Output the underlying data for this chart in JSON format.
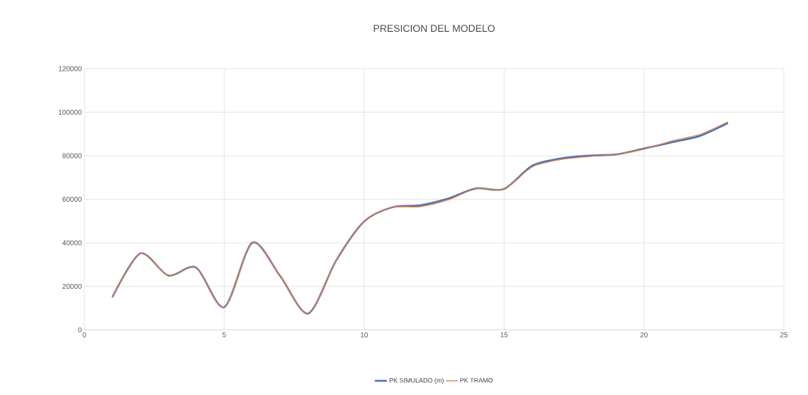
{
  "chart_data": {
    "type": "line",
    "title": "PRESICION DEL MODELO",
    "x": [
      1,
      2,
      3,
      4,
      5,
      6,
      7,
      8,
      9,
      10,
      11,
      12,
      13,
      14,
      15,
      16,
      17,
      18,
      19,
      20,
      21,
      22,
      23
    ],
    "series": [
      {
        "name": "PK SIMULADO (m)",
        "color": "#4472c4",
        "values": [
          15000,
          35100,
          25000,
          28600,
          10400,
          40000,
          24700,
          7500,
          31900,
          49800,
          56300,
          57200,
          60300,
          65000,
          64700,
          75400,
          78700,
          80000,
          80600,
          83300,
          86200,
          89100,
          95000
        ]
      },
      {
        "name": "PK TRAMO",
        "color": "#ed7d31",
        "values": [
          15000,
          35100,
          25000,
          28600,
          10400,
          40000,
          24700,
          7500,
          31900,
          49800,
          56300,
          56600,
          59700,
          65000,
          64700,
          74800,
          78200,
          79600,
          80600,
          83000,
          86800,
          89800,
          95600
        ]
      }
    ],
    "xlim": [
      0,
      25
    ],
    "xticks": [
      0,
      5,
      10,
      15,
      20,
      25
    ],
    "ylim": [
      0,
      120000
    ],
    "yticks": [
      0,
      20000,
      40000,
      60000,
      80000,
      100000,
      120000
    ],
    "grid": true,
    "legend": "bottom",
    "marker": "none",
    "line_style": "solid"
  }
}
